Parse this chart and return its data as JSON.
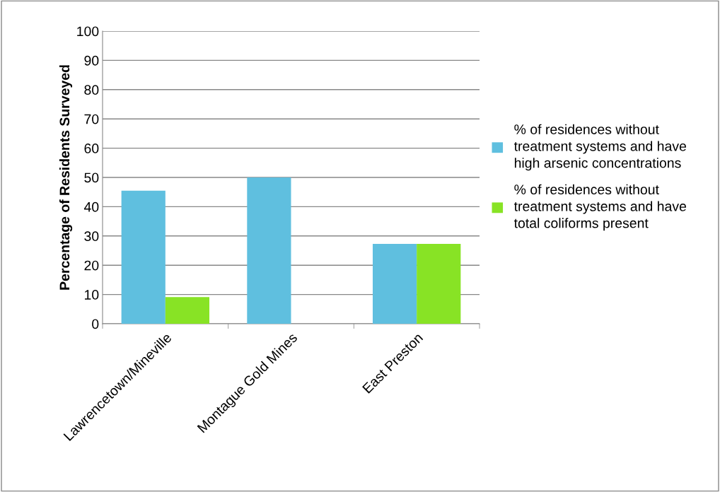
{
  "chart_data": {
    "type": "bar",
    "ylabel": "Percentage of Residents Surveyed",
    "categories": [
      "Lawrencetown/Mineville",
      "Montague Gold Mines",
      "East Preston"
    ],
    "series": [
      {
        "name": "% of residences without treatment systems and have high arsenic concentrations",
        "color": "#5fbfdf",
        "values": [
          45.5,
          50,
          27.3
        ]
      },
      {
        "name": "% of residences without treatment systems and have total coliforms present",
        "color": "#88e325",
        "values": [
          9.1,
          0,
          27.3
        ]
      }
    ],
    "ylim": [
      0,
      100
    ],
    "yticks": [
      0,
      10,
      20,
      30,
      40,
      50,
      60,
      70,
      80,
      90,
      100
    ],
    "grid": "y",
    "legend": "right"
  }
}
